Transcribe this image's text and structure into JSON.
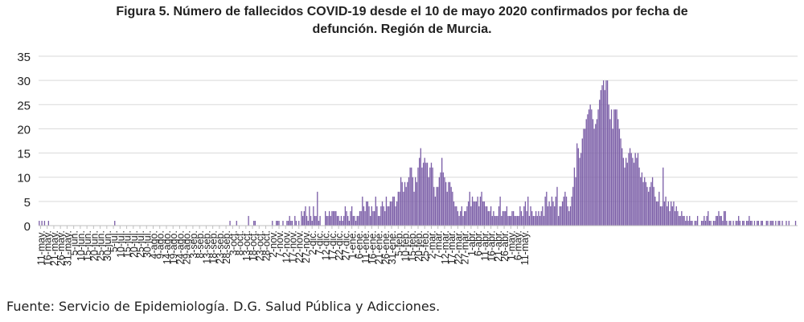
{
  "chart_data": {
    "type": "bar",
    "title_line1": "Figura 5. Número de fallecidos COVID-19 desde el 10 de mayo 2020 confirmados por fecha de",
    "title_line2": "defunción. Región de Murcia.",
    "xlabel": "",
    "ylabel": "",
    "ylim": [
      0,
      35
    ],
    "yticks": [
      0,
      5,
      10,
      15,
      20,
      25,
      30,
      35
    ],
    "grid": true,
    "legend": "none",
    "bar_color": "#7b5ea7",
    "x_tick_labels": [
      "11-may.",
      "16-may.",
      "21-may.",
      "26-may.",
      "31-may.",
      "5-jun.",
      "10-jun.",
      "15-jun.",
      "20-jun.",
      "25-jun.",
      "30-jun.",
      "5-jul.",
      "10-jul.",
      "15-jul.",
      "20-jul.",
      "25-jul.",
      "30-jul.",
      "4-ago.",
      "9-ago.",
      "14-ago.",
      "19-ago.",
      "24-ago.",
      "29-ago.",
      "3-sep.",
      "8-sep.",
      "13-sep.",
      "18-sep.",
      "23-sep.",
      "28-sep.",
      "3-oct.",
      "8-oct.",
      "13-oct.",
      "18-oct.",
      "23-oct.",
      "28-oct.",
      "2-nov.",
      "7-nov.",
      "12-nov.",
      "17-nov.",
      "22-nov.",
      "27-nov.",
      "2-dic.",
      "7-dic.",
      "12-dic.",
      "17-dic.",
      "22-dic.",
      "27-dic.",
      "1-ene.",
      "6-ene.",
      "11-ene.",
      "16-ene.",
      "21-ene.",
      "26-ene.",
      "31-ene.",
      "5-feb.",
      "10-feb.",
      "15-feb.",
      "20-feb.",
      "25-feb.",
      "2-mar.",
      "7-mar.",
      "12-mar.",
      "17-mar.",
      "22-mar.",
      "27-mar.",
      "1-abr.",
      "6-abr.",
      "11-abr.",
      "16-abr.",
      "21-abr.",
      "26-abr.",
      "1-may.",
      "6-may.",
      "11-may."
    ],
    "start_date": "2020-05-10",
    "values": [
      1,
      0,
      1,
      0,
      1,
      0,
      0,
      1,
      0,
      0,
      0,
      0,
      0,
      0,
      0,
      0,
      0,
      0,
      0,
      0,
      0,
      0,
      0,
      0,
      0,
      0,
      0,
      0,
      0,
      0,
      0,
      0,
      0,
      0,
      0,
      0,
      0,
      0,
      0,
      0,
      0,
      0,
      0,
      0,
      0,
      0,
      0,
      0,
      0,
      0,
      0,
      0,
      0,
      0,
      0,
      0,
      0,
      1,
      0,
      0,
      0,
      0,
      0,
      0,
      0,
      0,
      0,
      0,
      0,
      0,
      0,
      0,
      0,
      0,
      0,
      0,
      0,
      0,
      0,
      0,
      0,
      0,
      0,
      0,
      0,
      0,
      0,
      0,
      0,
      0,
      0,
      0,
      0,
      0,
      0,
      0,
      0,
      0,
      0,
      0,
      0,
      0,
      0,
      0,
      0,
      0,
      0,
      0,
      0,
      0,
      0,
      0,
      0,
      0,
      0,
      0,
      0,
      0,
      0,
      0,
      0,
      0,
      0,
      0,
      0,
      0,
      0,
      0,
      0,
      0,
      0,
      0,
      0,
      0,
      0,
      0,
      0,
      0,
      0,
      0,
      0,
      0,
      0,
      0,
      1,
      0,
      0,
      0,
      0,
      1,
      0,
      0,
      0,
      0,
      0,
      0,
      0,
      0,
      2,
      0,
      0,
      0,
      1,
      1,
      0,
      0,
      0,
      0,
      0,
      0,
      0,
      0,
      0,
      0,
      0,
      0,
      1,
      0,
      0,
      1,
      1,
      1,
      0,
      0,
      1,
      0,
      0,
      1,
      1,
      2,
      1,
      1,
      0,
      2,
      1,
      0,
      1,
      0,
      3,
      2,
      3,
      4,
      2,
      1,
      4,
      2,
      1,
      4,
      2,
      2,
      7,
      1,
      2,
      0,
      0,
      0,
      3,
      2,
      2,
      3,
      2,
      3,
      3,
      3,
      3,
      2,
      2,
      1,
      2,
      1,
      2,
      4,
      3,
      2,
      1,
      3,
      4,
      2,
      2,
      1,
      2,
      2,
      3,
      3,
      6,
      4,
      3,
      5,
      5,
      4,
      2,
      4,
      3,
      3,
      6,
      4,
      2,
      2,
      4,
      5,
      4,
      3,
      6,
      4,
      4,
      5,
      5,
      6,
      6,
      4,
      5,
      7,
      7,
      10,
      9,
      7,
      9,
      8,
      9,
      10,
      12,
      12,
      10,
      7,
      10,
      9,
      12,
      14,
      16,
      12,
      13,
      14,
      13,
      13,
      10,
      12,
      13,
      12,
      8,
      6,
      8,
      8,
      10,
      11,
      14,
      11,
      10,
      9,
      7,
      9,
      9,
      8,
      7,
      5,
      4,
      4,
      3,
      2,
      3,
      4,
      2,
      3,
      3,
      4,
      5,
      7,
      4,
      6,
      5,
      5,
      5,
      6,
      4,
      6,
      7,
      5,
      5,
      4,
      4,
      3,
      3,
      4,
      2,
      3,
      2,
      2,
      2,
      4,
      6,
      2,
      3,
      3,
      3,
      4,
      2,
      2,
      2,
      3,
      3,
      2,
      2,
      2,
      2,
      4,
      3,
      2,
      4,
      5,
      3,
      6,
      2,
      4,
      3,
      2,
      2,
      3,
      2,
      3,
      2,
      3,
      4,
      2,
      6,
      7,
      4,
      5,
      4,
      6,
      5,
      4,
      6,
      8,
      2,
      4,
      4,
      5,
      6,
      7,
      6,
      4,
      3,
      4,
      6,
      8,
      12,
      10,
      17,
      16,
      14,
      15,
      18,
      20,
      20,
      22,
      23,
      24,
      25,
      24,
      22,
      20,
      21,
      22,
      24,
      26,
      28,
      29,
      30,
      28,
      30,
      30,
      25,
      22,
      24,
      20,
      24,
      24,
      24,
      22,
      20,
      18,
      16,
      14,
      12,
      14,
      13,
      15,
      16,
      15,
      14,
      13,
      15,
      14,
      15,
      12,
      10,
      11,
      9,
      10,
      9,
      8,
      7,
      8,
      9,
      10,
      8,
      6,
      5,
      5,
      7,
      4,
      4,
      12,
      5,
      6,
      4,
      5,
      3,
      5,
      4,
      5,
      3,
      4,
      3,
      2,
      2,
      3,
      2,
      2,
      1,
      2,
      1,
      2,
      1,
      1,
      0,
      1,
      1,
      2,
      0,
      0,
      1,
      1,
      2,
      1,
      2,
      3,
      1,
      1,
      0,
      1,
      1,
      2,
      2,
      3,
      2,
      2,
      1,
      3,
      3,
      1,
      0,
      1,
      1,
      0,
      1,
      0,
      1,
      1,
      2,
      1,
      0,
      1,
      1,
      0,
      1,
      1,
      2,
      1,
      1,
      0,
      1,
      0,
      1,
      1,
      0,
      1,
      1,
      0,
      0,
      1,
      1,
      0,
      1,
      1,
      1,
      0,
      1,
      0,
      1,
      1,
      0,
      1,
      0,
      0,
      1,
      0,
      1,
      0,
      0,
      0,
      0,
      1,
      0
    ]
  },
  "source": "Fuente: Servicio de Epidemiología. D.G. Salud Pública y Adicciones."
}
